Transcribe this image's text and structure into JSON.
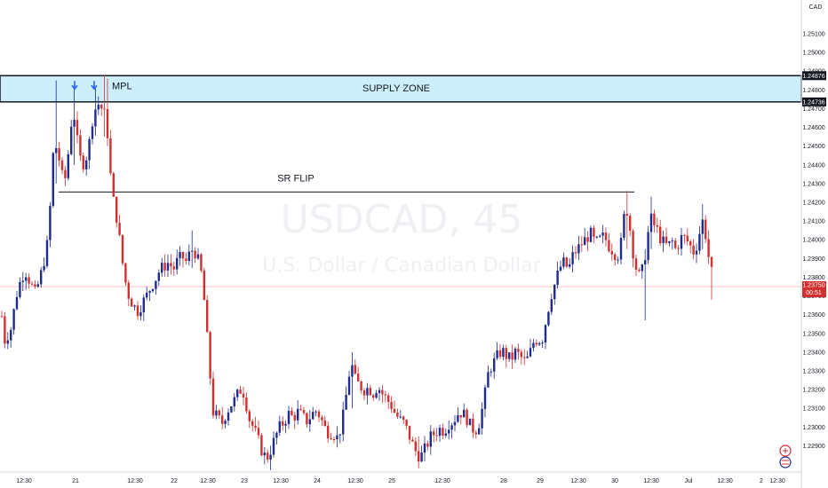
{
  "chart_data": {
    "type": "candlestick",
    "watermark": {
      "symbol": "USDCAD, 45",
      "description": "U.S. Dollar / Canadian Dollar"
    },
    "currency": "CAD",
    "ylim": [
      1.2276,
      1.2528
    ],
    "y_ticks": [
      "1.25100",
      "1.25000",
      "1.24900",
      "1.24800",
      "1.24700",
      "1.24600",
      "1.24500",
      "1.24400",
      "1.24300",
      "1.24200",
      "1.24100",
      "1.24000",
      "1.23900",
      "1.23800",
      "1.23700",
      "1.23600",
      "1.23500",
      "1.23400",
      "1.23300",
      "1.23200",
      "1.23100",
      "1.23000",
      "1.22900"
    ],
    "x_ticks": [
      "12:30",
      "21",
      "12:30",
      "22",
      "12:30",
      "23",
      "12:30",
      "24",
      "12:30",
      "25",
      "12:30",
      "28",
      "29",
      "12:30",
      "30",
      "12:30",
      "Jul",
      "12:30",
      "2",
      "12:30"
    ],
    "zone": {
      "label": "SUPPLY ZONE",
      "top": 1.24876,
      "bottom": 1.24736,
      "top_label": "1.24876",
      "bottom_label": "1.24736"
    },
    "sr_flip": {
      "label": "SR FLIP",
      "price": 1.24255
    },
    "mpl_label": "MPL",
    "current_price": {
      "price": 1.2375,
      "label": "1.23750",
      "countdown": "00:51"
    },
    "colors": {
      "up": "#1e2b8f",
      "down": "#d32f2f",
      "zone_fill": "#cdeffb",
      "price_line": "#e88"
    },
    "anchors": [
      [
        0,
        1.2368
      ],
      [
        5,
        1.2346
      ],
      [
        12,
        1.2352
      ],
      [
        20,
        1.2374
      ],
      [
        28,
        1.2384
      ],
      [
        35,
        1.2376
      ],
      [
        40,
        1.2371
      ],
      [
        48,
        1.2385
      ],
      [
        55,
        1.2402
      ],
      [
        58,
        1.2435
      ],
      [
        61,
        1.2452
      ],
      [
        65,
        1.2447
      ],
      [
        69,
        1.2437
      ],
      [
        72,
        1.2428
      ],
      [
        76,
        1.2442
      ],
      [
        80,
        1.2462
      ],
      [
        84,
        1.2466
      ],
      [
        88,
        1.2448
      ],
      [
        92,
        1.244
      ],
      [
        96,
        1.2442
      ],
      [
        100,
        1.245
      ],
      [
        104,
        1.2464
      ],
      [
        108,
        1.2471
      ],
      [
        112,
        1.2473
      ],
      [
        116,
        1.2468
      ],
      [
        119,
        1.2466
      ],
      [
        122,
        1.2452
      ],
      [
        125,
        1.243
      ],
      [
        128,
        1.242
      ],
      [
        132,
        1.241
      ],
      [
        136,
        1.2395
      ],
      [
        140,
        1.238
      ],
      [
        145,
        1.237
      ],
      [
        150,
        1.2365
      ],
      [
        155,
        1.2362
      ],
      [
        160,
        1.2366
      ],
      [
        165,
        1.237
      ],
      [
        170,
        1.2375
      ],
      [
        175,
        1.2379
      ],
      [
        180,
        1.2384
      ],
      [
        185,
        1.2386
      ],
      [
        190,
        1.2388
      ],
      [
        195,
        1.2384
      ],
      [
        200,
        1.2389
      ],
      [
        205,
        1.2391
      ],
      [
        210,
        1.2388
      ],
      [
        215,
        1.2395
      ],
      [
        220,
        1.2393
      ],
      [
        225,
        1.2386
      ],
      [
        228,
        1.2378
      ],
      [
        232,
        1.2355
      ],
      [
        236,
        1.233
      ],
      [
        240,
        1.2308
      ],
      [
        245,
        1.2305
      ],
      [
        250,
        1.2302
      ],
      [
        255,
        1.2308
      ],
      [
        260,
        1.2312
      ],
      [
        265,
        1.2315
      ],
      [
        270,
        1.232
      ],
      [
        275,
        1.2318
      ],
      [
        280,
        1.2305
      ],
      [
        285,
        1.23
      ],
      [
        290,
        1.2294
      ],
      [
        295,
        1.2287
      ],
      [
        300,
        1.2283
      ],
      [
        305,
        1.2288
      ],
      [
        310,
        1.2295
      ],
      [
        315,
        1.23
      ],
      [
        320,
        1.2303
      ],
      [
        325,
        1.2307
      ],
      [
        330,
        1.2305
      ],
      [
        335,
        1.2308
      ],
      [
        340,
        1.2306
      ],
      [
        345,
        1.2303
      ],
      [
        350,
        1.2306
      ],
      [
        355,
        1.2309
      ],
      [
        360,
        1.2306
      ],
      [
        365,
        1.23
      ],
      [
        370,
        1.2297
      ],
      [
        375,
        1.2297
      ],
      [
        380,
        1.2294
      ],
      [
        385,
        1.2302
      ],
      [
        390,
        1.2318
      ],
      [
        395,
        1.2335
      ],
      [
        400,
        1.2325
      ],
      [
        405,
        1.2322
      ],
      [
        410,
        1.232
      ],
      [
        415,
        1.2321
      ],
      [
        420,
        1.2318
      ],
      [
        425,
        1.2322
      ],
      [
        430,
        1.2318
      ],
      [
        435,
        1.2315
      ],
      [
        440,
        1.2312
      ],
      [
        445,
        1.2307
      ],
      [
        450,
        1.2304
      ],
      [
        455,
        1.2302
      ],
      [
        460,
        1.2296
      ],
      [
        465,
        1.229
      ],
      [
        470,
        1.2285
      ],
      [
        475,
        1.2285
      ],
      [
        480,
        1.229
      ],
      [
        485,
        1.2295
      ],
      [
        490,
        1.2297
      ],
      [
        495,
        1.2299
      ],
      [
        500,
        1.2298
      ],
      [
        505,
        1.2302
      ],
      [
        510,
        1.2303
      ],
      [
        515,
        1.2307
      ],
      [
        520,
        1.2308
      ],
      [
        525,
        1.2305
      ],
      [
        530,
        1.23
      ],
      [
        535,
        1.2298
      ],
      [
        540,
        1.2303
      ],
      [
        545,
        1.2315
      ],
      [
        550,
        1.233
      ],
      [
        555,
        1.2334
      ],
      [
        560,
        1.2338
      ],
      [
        565,
        1.2341
      ],
      [
        570,
        1.2338
      ],
      [
        575,
        1.2336
      ],
      [
        580,
        1.234
      ],
      [
        585,
        1.2338
      ],
      [
        590,
        1.2335
      ],
      [
        595,
        1.2337
      ],
      [
        600,
        1.2345
      ],
      [
        605,
        1.2347
      ],
      [
        610,
        1.2346
      ],
      [
        615,
        1.2358
      ],
      [
        620,
        1.237
      ],
      [
        625,
        1.2377
      ],
      [
        630,
        1.2385
      ],
      [
        635,
        1.2388
      ],
      [
        640,
        1.2384
      ],
      [
        645,
        1.2392
      ],
      [
        650,
        1.2395
      ],
      [
        655,
        1.2398
      ],
      [
        660,
        1.2401
      ],
      [
        665,
        1.2403
      ],
      [
        670,
        1.2398
      ],
      [
        675,
        1.24
      ],
      [
        680,
        1.2402
      ],
      [
        685,
        1.2397
      ],
      [
        690,
        1.2394
      ],
      [
        695,
        1.2391
      ],
      [
        700,
        1.24
      ],
      [
        704,
        1.242
      ],
      [
        708,
        1.241
      ],
      [
        712,
        1.2395
      ],
      [
        716,
        1.2385
      ],
      [
        720,
        1.238
      ],
      [
        724,
        1.2385
      ],
      [
        728,
        1.2398
      ],
      [
        732,
        1.2412
      ],
      [
        736,
        1.2408
      ],
      [
        740,
        1.2405
      ],
      [
        744,
        1.24
      ],
      [
        748,
        1.2398
      ],
      [
        752,
        1.2396
      ],
      [
        756,
        1.24
      ],
      [
        760,
        1.2395
      ],
      [
        764,
        1.2398
      ],
      [
        768,
        1.2402
      ],
      [
        772,
        1.24
      ],
      [
        776,
        1.2398
      ],
      [
        780,
        1.2393
      ],
      [
        784,
        1.2397
      ],
      [
        788,
        1.2405
      ],
      [
        792,
        1.2412
      ],
      [
        796,
        1.2395
      ],
      [
        800,
        1.2385
      ],
      [
        804,
        1.2375
      ]
    ],
    "fixed_wicks": [
      [
        63,
        1.2485,
        1.243
      ],
      [
        82,
        1.2482,
        1.244
      ],
      [
        106,
        1.2481,
        1.2462
      ],
      [
        118,
        1.2488,
        1.2455
      ],
      [
        120,
        1.2486,
        1.245
      ],
      [
        215,
        1.2405,
        1.2385
      ],
      [
        305,
        1.229,
        1.2277
      ],
      [
        395,
        1.234,
        1.231
      ],
      [
        470,
        1.2295,
        1.2278
      ],
      [
        706,
        1.2426,
        1.2395
      ],
      [
        727,
        1.2395,
        1.2357
      ],
      [
        734,
        1.2423,
        1.2395
      ],
      [
        790,
        1.2419,
        1.2395
      ],
      [
        802,
        1.239,
        1.2368
      ]
    ]
  }
}
